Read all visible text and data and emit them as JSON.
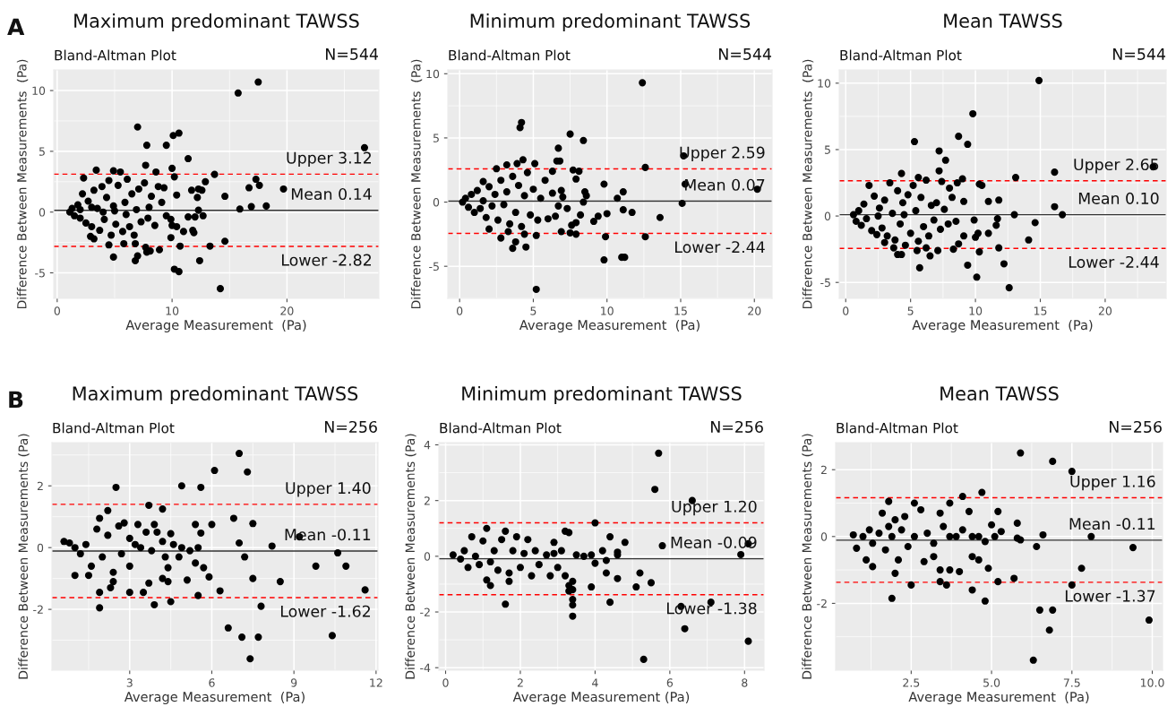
{
  "chart_data": [
    {
      "type": "scatter",
      "title": "Maximum predominant TAWSS",
      "subtitle": "Bland-Altman Plot",
      "annotations": [
        "A",
        "N=544"
      ],
      "xlabel": "Average Measurement  (Pa)",
      "ylabel": "Difference Between Measurements  (Pa)",
      "marker": "circle",
      "grid": true,
      "legend": false,
      "xlim": [
        -0.3,
        28
      ],
      "ylim": [
        -7.1,
        11.7
      ],
      "xticks": [
        0,
        10,
        20
      ],
      "yticks": [
        -5,
        0,
        5,
        10
      ],
      "ref_lines": [
        {
          "axis": "y",
          "value": 3.12,
          "label": "Upper 3.12",
          "color": "#ff0000",
          "line_style": "dashed"
        },
        {
          "axis": "y",
          "value": 0.14,
          "label": "Mean 0.14",
          "color": "#333333",
          "line_style": "solid"
        },
        {
          "axis": "y",
          "value": -2.82,
          "label": "Lower -2.82",
          "color": "#ff0000",
          "line_style": "dashed"
        }
      ],
      "series": [
        {
          "color": "#000000",
          "x": [
            15.75,
            17.5,
            7.0,
            10.1,
            10.6,
            7.8,
            9.5,
            26.75,
            11.4,
            7.7,
            3.4,
            4.9,
            8.6,
            10.0,
            10.2,
            13.7,
            17.3,
            17.6,
            19.7,
            16.7,
            14.6,
            12.9,
            11.7,
            12.3,
            12.6,
            12.2,
            10.4,
            15.9,
            16.9,
            18.2,
            12.3,
            11.4,
            12.0,
            12.7,
            11.8,
            11.9,
            11.0,
            10.0,
            10.4,
            9.9,
            10.7,
            13.3,
            14.6,
            12.4,
            10.2,
            10.6,
            14.2,
            7.0,
            6.8,
            4.9,
            4.5,
            5.8,
            6.8,
            7.8,
            8.1,
            8.9,
            7.7,
            3.2,
            2.9,
            1.1,
            1.3,
            1.5,
            1.8,
            2.0,
            2.2,
            2.3,
            2.5,
            2.7,
            3.0,
            3.2,
            3.5,
            3.7,
            3.9,
            4.1,
            4.3,
            4.5,
            4.7,
            4.9,
            5.1,
            5.3,
            5.5,
            5.7,
            5.9,
            6.1,
            6.3,
            6.5,
            6.7,
            6.9,
            7.1,
            7.3,
            7.6,
            7.9,
            8.2,
            8.5,
            8.8,
            9.1,
            9.3,
            9.5,
            9.9,
            4.0,
            5.0,
            6.0,
            3.0,
            2.0,
            8.0
          ],
          "values": [
            9.8,
            10.7,
            7.0,
            6.3,
            6.5,
            5.5,
            5.5,
            5.3,
            4.4,
            3.85,
            3.45,
            3.4,
            3.3,
            3.6,
            2.9,
            3.1,
            2.7,
            2.2,
            1.9,
            2.0,
            1.3,
            2.5,
            1.8,
            1.9,
            1.8,
            1.2,
            1.4,
            0.25,
            0.45,
            0.5,
            0.15,
            -0.4,
            -0.4,
            -0.3,
            -1.5,
            -1.7,
            -1.6,
            -1.1,
            -1.2,
            -2.1,
            -2.8,
            -2.8,
            -2.4,
            -4.0,
            -4.7,
            -4.9,
            -6.3,
            -3.6,
            -4.0,
            -3.7,
            -2.7,
            -2.6,
            -2.6,
            -3.3,
            -3.2,
            -3.1,
            -2.9,
            -2.2,
            -2.0,
            0.0,
            0.3,
            -0.3,
            0.6,
            -0.5,
            1.5,
            2.8,
            -0.9,
            0.9,
            -1.2,
            1.8,
            0.3,
            -1.5,
            2.1,
            -0.6,
            1.2,
            2.6,
            -1.9,
            0.5,
            -1.0,
            2.2,
            3.3,
            -1.6,
            0.8,
            2.7,
            -1.2,
            1.5,
            -1.9,
            0.2,
            1.9,
            -0.8,
            2.4,
            -0.5,
            1.3,
            -1.1,
            2.1,
            0.8,
            2.0,
            -0.3,
            -0.6,
            0.0,
            0.1,
            -0.2,
            0.4,
            0.2,
            0.4
          ]
        }
      ]
    },
    {
      "type": "scatter",
      "title": "Minimum predominant TAWSS",
      "subtitle": "Bland-Altman Plot",
      "annotations": [
        "N=544"
      ],
      "xlabel": "Average Measurement  (Pa)",
      "ylabel": "Difference Between Measurements  (Pa)",
      "marker": "circle",
      "grid": true,
      "legend": false,
      "xlim": [
        -0.8,
        21.2
      ],
      "ylim": [
        -7.5,
        10.3
      ],
      "xticks": [
        0,
        5,
        10,
        15,
        20
      ],
      "yticks": [
        -5,
        0,
        5,
        10
      ],
      "ref_lines": [
        {
          "axis": "y",
          "value": 2.59,
          "label": "Upper 2.59",
          "color": "#ff0000",
          "line_style": "dashed"
        },
        {
          "axis": "y",
          "value": 0.07,
          "label": "Mean 0.07",
          "color": "#333333",
          "line_style": "solid"
        },
        {
          "axis": "y",
          "value": -2.44,
          "label": "Lower -2.44",
          "color": "#ff0000",
          "line_style": "dashed"
        }
      ],
      "series": [
        {
          "color": "#000000",
          "x": [
            12.4,
            4.2,
            4.1,
            7.5,
            8.4,
            6.7,
            6.8,
            6.6,
            15.2,
            12.6,
            15.3,
            20.2,
            9.8,
            11.1,
            10.7,
            15.1,
            11.7,
            11.1,
            10.0,
            9.1,
            9.4,
            13.6,
            9.9,
            12.6,
            9.8,
            11.0,
            11.2,
            5.2,
            3.6,
            4.5,
            3.8,
            2.8,
            4.4,
            5.2,
            7.5,
            7.9,
            6.9,
            7.6,
            7.9,
            8.2,
            2.0,
            3.3,
            8.4,
            8.5,
            8.6,
            7.7,
            7.9,
            8.1,
            6.3,
            5.1,
            3.9,
            3.2,
            4.3,
            2.5,
            1.6,
            0.2,
            0.4,
            0.6,
            0.8,
            1.0,
            1.2,
            1.4,
            1.6,
            1.8,
            2.0,
            2.2,
            2.4,
            2.6,
            2.8,
            3.0,
            3.2,
            3.4,
            3.6,
            3.8,
            4.0,
            4.2,
            4.4,
            4.6,
            4.8,
            5.0,
            5.3,
            5.5,
            5.8,
            6.0,
            6.3,
            6.5,
            6.7,
            7.0,
            7.3,
            6.9
          ],
          "values": [
            9.3,
            6.2,
            5.8,
            5.3,
            4.8,
            4.2,
            3.2,
            3.2,
            3.6,
            2.7,
            1.4,
            1.0,
            1.4,
            0.8,
            0.3,
            -0.1,
            -0.8,
            -0.6,
            -0.9,
            -1.5,
            -1.1,
            -1.2,
            -2.7,
            -2.7,
            -4.5,
            -4.3,
            -4.3,
            -6.8,
            -3.6,
            -3.5,
            -3.1,
            -2.8,
            -2.5,
            -2.6,
            -2.4,
            -2.5,
            -2.3,
            -1.8,
            -1.6,
            -1.0,
            -2.1,
            -2.3,
            0.0,
            0.8,
            0.5,
            2.5,
            1.8,
            2.4,
            2.4,
            3.0,
            3.0,
            2.9,
            3.3,
            2.6,
            1.6,
            0.0,
            0.3,
            -0.4,
            0.6,
            -0.8,
            0.9,
            -0.5,
            0.1,
            -1.2,
            1.2,
            -0.3,
            0.6,
            -1.4,
            1.7,
            -0.2,
            0.8,
            -1.7,
            2.0,
            -0.8,
            1.3,
            -1.9,
            0.5,
            2.3,
            -1.0,
            1.0,
            -1.4,
            0.3,
            1.7,
            -1.3,
            0.7,
            -1.1,
            -0.3,
            0.4,
            -0.5,
            0.9
          ]
        }
      ]
    },
    {
      "type": "scatter",
      "title": "Mean TAWSS",
      "subtitle": "Bland-Altman Plot",
      "annotations": [
        "N=544"
      ],
      "xlabel": "Average Measurement  (Pa)",
      "ylabel": "Difference Between Measurements  (Pa)",
      "marker": "circle",
      "grid": true,
      "legend": false,
      "xlim": [
        -0.5,
        24.7
      ],
      "ylim": [
        -6.2,
        11.0
      ],
      "xticks": [
        0,
        5,
        10,
        15,
        20
      ],
      "yticks": [
        -5,
        0,
        5,
        10
      ],
      "ref_lines": [
        {
          "axis": "y",
          "value": 2.65,
          "label": "Upper 2.65",
          "color": "#ff0000",
          "line_style": "dashed"
        },
        {
          "axis": "y",
          "value": 0.1,
          "label": "Mean 0.10",
          "color": "#333333",
          "line_style": "solid"
        },
        {
          "axis": "y",
          "value": -2.44,
          "label": "Lower -2.44",
          "color": "#ff0000",
          "line_style": "dashed"
        }
      ],
      "series": [
        {
          "color": "#000000",
          "x": [
            14.9,
            9.8,
            8.7,
            9.4,
            5.3,
            7.2,
            7.7,
            7.2,
            16.1,
            23.7,
            13.1,
            9.0,
            4.3,
            5.6,
            10.3,
            10.5,
            11.8,
            11.0,
            16.1,
            13.0,
            16.7,
            14.6,
            14.1,
            11.0,
            11.6,
            11.7,
            10.2,
            10.0,
            10.3,
            11.8,
            12.2,
            9.4,
            10.1,
            12.6,
            5.7,
            4.0,
            4.3,
            5.5,
            6.2,
            6.5,
            7.1,
            8.3,
            8.7,
            3.7,
            3.0,
            9.1,
            9.9,
            9.1,
            8.6,
            7.4,
            8.0,
            0.6,
            0.8,
            1.0,
            1.2,
            1.4,
            1.6,
            1.8,
            2.0,
            2.2,
            2.4,
            2.6,
            2.8,
            3.0,
            3.2,
            3.4,
            3.6,
            3.8,
            4.0,
            4.2,
            4.4,
            4.6,
            4.8,
            5.0,
            5.2,
            5.4,
            5.6,
            5.8,
            6.0,
            6.2,
            6.4,
            6.6,
            6.8,
            7.0,
            7.3,
            7.6,
            7.9,
            8.2,
            8.5,
            2.5,
            4.5
          ],
          "values": [
            10.2,
            7.7,
            6.0,
            5.4,
            5.6,
            4.9,
            4.2,
            3.4,
            3.3,
            3.7,
            2.9,
            2.8,
            3.2,
            2.9,
            2.4,
            2.3,
            1.2,
            1.1,
            0.7,
            0.1,
            0.1,
            -0.5,
            -1.8,
            -1.3,
            -0.7,
            -0.2,
            -1.3,
            -1.6,
            -2.7,
            -2.4,
            -3.6,
            -3.7,
            -4.6,
            -5.4,
            -3.9,
            -2.9,
            -2.9,
            -2.6,
            -2.4,
            -3.0,
            -2.6,
            -2.5,
            -2.1,
            -2.4,
            -2.0,
            -1.5,
            -0.3,
            1.1,
            2.5,
            2.6,
            2.1,
            0.1,
            -0.4,
            0.4,
            -0.7,
            0.9,
            -0.2,
            2.3,
            -1.1,
            1.5,
            -1.4,
            0.6,
            -0.9,
            1.2,
            -1.5,
            2.5,
            0.2,
            -1.8,
            1.9,
            -0.6,
            1.0,
            -2.2,
            1.6,
            -1.3,
            2.3,
            0.4,
            -1.9,
            1.4,
            -0.8,
            2.7,
            -1.5,
            0.8,
            -0.3,
            1.0,
            -1.0,
            0.5,
            -0.6,
            1.4,
            -0.4,
            0.0,
            0.1
          ]
        }
      ]
    },
    {
      "type": "scatter",
      "title": "Maximum predominant TAWSS",
      "subtitle": "Bland-Altman Plot",
      "annotations": [
        "B",
        "N=256"
      ],
      "xlabel": "Average Measurement  (Pa)",
      "ylabel": "Difference Between Measurements (Pa)",
      "marker": "circle",
      "grid": true,
      "legend": false,
      "xlim": [
        0.16,
        12.07
      ],
      "ylim": [
        -3.97,
        3.4
      ],
      "xticks": [
        3,
        6,
        9,
        12
      ],
      "yticks": [
        -2,
        0,
        2
      ],
      "ref_lines": [
        {
          "axis": "y",
          "value": 1.4,
          "label": "Upper 1.40",
          "color": "#ff0000",
          "line_style": "dashed"
        },
        {
          "axis": "y",
          "value": -0.11,
          "label": "Mean -0.11",
          "color": "#333333",
          "line_style": "solid"
        },
        {
          "axis": "y",
          "value": -1.62,
          "label": "Lower -1.62",
          "color": "#ff0000",
          "line_style": "dashed"
        }
      ],
      "series": [
        {
          "color": "#000000",
          "x": [
            7.0,
            6.1,
            7.3,
            2.5,
            4.9,
            5.6,
            3.7,
            4.2,
            2.2,
            1.9,
            6.8,
            7.5,
            6.0,
            5.4,
            3.3,
            3.9,
            5.6,
            4.5,
            9.2,
            8.2,
            7.0,
            7.2,
            10.6,
            9.8,
            10.9,
            11.6,
            8.5,
            7.5,
            6.3,
            5.9,
            5.7,
            5.4,
            5.1,
            5.5,
            4.5,
            3.9,
            3.5,
            3.0,
            1.9,
            1.9,
            2.3,
            2.4,
            1.0,
            1.5,
            3.7,
            4.2,
            4.4,
            4.4,
            4.3,
            6.6,
            7.1,
            7.7,
            7.8,
            10.4,
            7.4,
            0.6,
            0.8,
            1.0,
            1.2,
            1.4,
            1.6,
            1.8,
            2.0,
            2.2,
            2.4,
            2.6,
            2.8,
            3.0,
            3.2,
            3.4,
            3.6,
            3.8,
            4.0,
            4.2,
            4.6,
            4.9,
            5.2,
            5.5,
            4.8,
            2.7,
            3.0
          ],
          "values": [
            3.05,
            2.5,
            2.45,
            1.95,
            2.0,
            1.95,
            1.37,
            1.25,
            1.2,
            0.95,
            0.95,
            0.78,
            0.75,
            0.75,
            0.75,
            0.75,
            0.47,
            0.45,
            0.35,
            0.05,
            0.15,
            -0.3,
            -0.17,
            -0.6,
            -0.6,
            -1.37,
            -1.1,
            -1.0,
            -1.4,
            -0.95,
            -0.65,
            -0.5,
            -1.05,
            -1.55,
            -1.75,
            -1.85,
            -1.45,
            -1.45,
            -1.95,
            -1.45,
            -1.3,
            -1.1,
            -0.9,
            -0.9,
            -1.15,
            -1.0,
            -1.1,
            -0.65,
            -0.3,
            -2.6,
            -2.9,
            -2.9,
            -1.9,
            -2.85,
            -3.6,
            0.2,
            0.15,
            0.0,
            -0.2,
            0.1,
            -0.6,
            0.6,
            -0.3,
            0.4,
            -0.8,
            0.7,
            0.8,
            -0.6,
            0.1,
            0.0,
            0.5,
            -0.1,
            0.5,
            0.2,
            0.1,
            0.0,
            -0.1,
            0.0,
            -0.3,
            -0.2,
            0.3
          ]
        }
      ]
    },
    {
      "type": "scatter",
      "title": "Minimum predominant TAWSS",
      "subtitle": "Bland-Altman Plot",
      "annotations": [
        "N=256"
      ],
      "xlabel": "Average Measurement (Pa)",
      "ylabel": "Difference Between Measurements (Pa)",
      "marker": "circle",
      "grid": true,
      "legend": false,
      "xlim": [
        -0.18,
        8.52
      ],
      "ylim": [
        -4.09,
        4.08
      ],
      "xticks": [
        0,
        2,
        4,
        6,
        8
      ],
      "yticks": [
        -4,
        -2,
        0,
        2,
        4
      ],
      "ref_lines": [
        {
          "axis": "y",
          "value": 1.2,
          "label": "Upper 1.20",
          "color": "#ff0000",
          "line_style": "dashed"
        },
        {
          "axis": "y",
          "value": -0.09,
          "label": "Mean -0.09",
          "color": "#333333",
          "line_style": "solid"
        },
        {
          "axis": "y",
          "value": -1.38,
          "label": "Lower -1.38",
          "color": "#ff0000",
          "line_style": "dashed"
        }
      ],
      "series": [
        {
          "color": "#000000",
          "x": [
            5.7,
            5.6,
            6.6,
            4.0,
            5.8,
            8.1,
            7.9,
            4.8,
            4.4,
            3.2,
            3.3,
            2.9,
            4.6,
            4.6,
            4.0,
            4.3,
            4.6,
            3.9,
            5.2,
            5.1,
            5.5,
            4.4,
            3.4,
            3.4,
            3.4,
            3.4,
            3.3,
            3.3,
            3.4,
            1.6,
            1.7,
            1.1,
            1.2,
            6.3,
            6.4,
            7.1,
            8.1,
            5.3,
            0.2,
            0.4,
            0.5,
            0.6,
            0.7,
            0.8,
            0.9,
            1.0,
            1.1,
            1.2,
            1.3,
            1.4,
            1.5,
            1.6,
            1.7,
            1.8,
            1.9,
            2.0,
            2.1,
            2.2,
            2.3,
            2.4,
            2.5,
            2.7,
            2.8,
            2.9,
            3.0,
            3.1,
            3.2,
            3.5,
            3.7,
            3.9,
            4.2,
            4.3
          ],
          "values": [
            3.7,
            2.4,
            2.0,
            1.2,
            0.38,
            0.45,
            0.06,
            0.5,
            0.7,
            0.9,
            0.85,
            0.5,
            0.15,
            0.05,
            -0.25,
            -0.6,
            -0.8,
            -1.1,
            -0.6,
            -1.1,
            -0.95,
            -1.65,
            -1.55,
            -1.75,
            -2.15,
            -0.9,
            -1.05,
            -1.25,
            -1.2,
            -1.72,
            -0.9,
            -0.85,
            -1.05,
            -1.8,
            -2.6,
            -1.65,
            -3.05,
            -3.7,
            0.05,
            -0.1,
            0.2,
            -0.4,
            0.7,
            0.0,
            -0.3,
            0.55,
            1.0,
            -0.2,
            0.2,
            -0.5,
            0.6,
            0.9,
            -0.6,
            0.2,
            0.7,
            -0.4,
            0.1,
            0.6,
            -0.7,
            0.2,
            -0.3,
            0.05,
            -0.7,
            0.1,
            -0.4,
            0.2,
            -0.7,
            0.05,
            0.0,
            0.05,
            0.2,
            -0.15
          ]
        }
      ]
    },
    {
      "type": "scatter",
      "title": "Mean TAWSS",
      "subtitle": "Bland-Altman Plot",
      "annotations": [
        "N=256"
      ],
      "xlabel": "Average Measurement  (Pa)",
      "ylabel": "Difference Between Measurements (Pa)",
      "marker": "circle",
      "grid": true,
      "legend": false,
      "xlim": [
        0.15,
        10.32
      ],
      "ylim": [
        -4.0,
        2.81
      ],
      "xticks": [
        {
          "value": 2.5,
          "label": "2.5"
        },
        {
          "value": 5,
          "label": "5.0"
        },
        {
          "value": 7.5,
          "label": "7.5"
        },
        {
          "value": 10,
          "label": "10.0"
        }
      ],
      "yticks": [
        -2,
        0,
        2
      ],
      "ref_lines": [
        {
          "axis": "y",
          "value": 1.16,
          "label": "Upper 1.16",
          "color": "#ff0000",
          "line_style": "dashed"
        },
        {
          "axis": "y",
          "value": -0.11,
          "label": "Mean -0.11",
          "color": "#333333",
          "line_style": "solid"
        },
        {
          "axis": "y",
          "value": -1.37,
          "label": "Lower -1.37",
          "color": "#ff0000",
          "line_style": "dashed"
        }
      ],
      "series": [
        {
          "color": "#000000",
          "x": [
            5.9,
            6.9,
            7.5,
            4.7,
            4.1,
            3.7,
            2.6,
            1.8,
            4.3,
            5.2,
            5.8,
            6.6,
            8.1,
            9.4,
            6.4,
            5.8,
            5.9,
            5.3,
            4.8,
            4.9,
            4.0,
            3.4,
            3.7,
            3.4,
            3.6,
            2.5,
            4.4,
            4.8,
            5.2,
            5.7,
            7.8,
            7.5,
            1.9,
            2.0,
            6.5,
            6.9,
            6.8,
            9.9,
            6.3,
            4.4,
            4.6,
            2.9,
            3.2,
            1.3,
            1.1,
            0.7,
            0.8,
            1.0,
            1.2,
            1.3,
            1.5,
            1.6,
            1.7,
            1.8,
            1.9,
            2.0,
            2.1,
            2.2,
            2.3,
            2.4,
            2.6,
            2.8,
            3.0,
            3.2,
            3.4,
            3.5,
            3.7,
            3.9,
            4.1,
            4.4,
            4.6,
            5.0,
            5.1
          ],
          "values": [
            2.5,
            2.25,
            1.95,
            1.32,
            1.2,
            1.0,
            1.0,
            1.05,
            0.75,
            0.75,
            0.4,
            0.05,
            0.0,
            -0.33,
            -0.3,
            -0.05,
            -0.1,
            0.15,
            -0.15,
            -0.95,
            -1.05,
            -1.0,
            -1.0,
            -1.35,
            -1.45,
            -1.45,
            -1.6,
            -1.93,
            -1.35,
            -1.25,
            -0.95,
            -1.45,
            -1.85,
            -1.1,
            -2.2,
            -2.2,
            -2.8,
            -2.5,
            -3.7,
            -0.6,
            -0.7,
            -0.75,
            -0.6,
            -0.9,
            -0.7,
            0.05,
            -0.35,
            0.0,
            0.2,
            -0.2,
            0.1,
            0.7,
            -0.4,
            0.3,
            0.0,
            0.5,
            -0.7,
            0.2,
            0.6,
            -0.3,
            0.0,
            0.8,
            0.1,
            -0.2,
            0.7,
            0.3,
            0.0,
            0.0,
            0.2,
            0.0,
            0.0,
            0.35,
            0.0
          ]
        }
      ]
    }
  ]
}
